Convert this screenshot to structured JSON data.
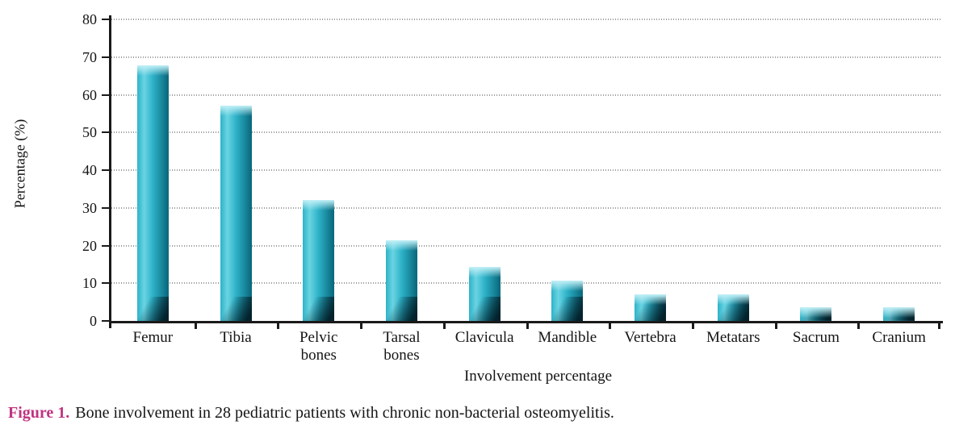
{
  "figure": {
    "caption_label": "Figure 1.",
    "caption_text": "Bone involvement in 28 pediatric patients with chronic non-bacterial osteomyelitis."
  },
  "colors": {
    "caption_accent": "#c03380",
    "axis": "#1a1a1a",
    "gridline": "#8a8a8a",
    "bar_main": "#2db2c8",
    "bar_light": "#6ad4e2",
    "bar_dark": "#0b6a7e",
    "bar_cap": "#c4f0f7",
    "bar_shadow": "#03222c"
  },
  "chart_data": {
    "type": "bar",
    "title": "",
    "xlabel": "Involvement percentage",
    "ylabel": "Percentage (%)",
    "categories": [
      "Femur",
      "Tibia",
      "Pelvic bones",
      "Tarsal bones",
      "Clavicula",
      "Mandible",
      "Vertebra",
      "Metatars",
      "Sacrum",
      "Cranium"
    ],
    "values": [
      67.9,
      57.1,
      32.1,
      21.4,
      14.3,
      10.7,
      7.1,
      7.1,
      3.6,
      3.6
    ],
    "ylim": [
      0,
      80
    ],
    "yticks": [
      0,
      10,
      20,
      30,
      40,
      50,
      60,
      70,
      80
    ],
    "grid": "dotted-horizontal",
    "legend": "none",
    "bar_style": "cylinder-gradient-teal"
  }
}
